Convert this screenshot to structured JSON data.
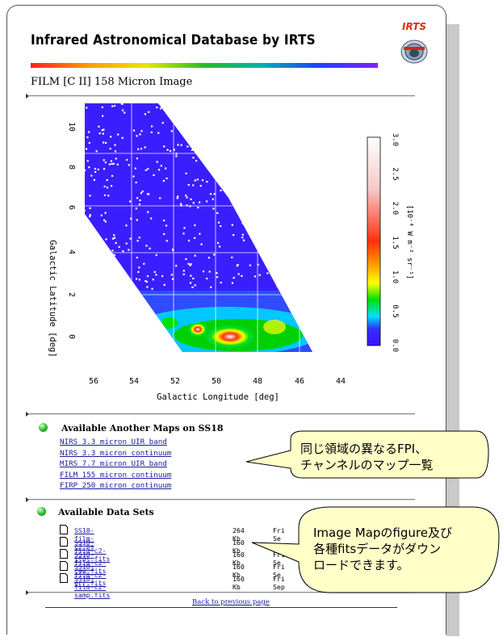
{
  "header": {
    "site_title": "Infrared Astronomical Database by IRTS",
    "logo_text": "IRTS"
  },
  "page_title": "FILM [C II] 158 Micron Image",
  "map": {
    "y_axis_label": "Galactic Latitude [deg]",
    "x_axis_label": "Galactic Longitude [deg]",
    "y_ticks": [
      "10",
      "8",
      "6",
      "4",
      "2",
      "0"
    ],
    "x_ticks": [
      "56",
      "54",
      "52",
      "50",
      "48",
      "46",
      "44"
    ],
    "colorbar_ticks": [
      "3.0",
      "2.5",
      "2.0",
      "1.5",
      "1.0",
      "0.5",
      "0.0"
    ],
    "colorbar_label": "[10⁻⁴ W m⁻² sr⁻¹]",
    "colorbar_colors": [
      "#ffffff",
      "#f4c8c8",
      "#ff3010",
      "#ff9000",
      "#ffff00",
      "#00e000",
      "#00e0ff",
      "#3030ff",
      "#4010ff"
    ]
  },
  "maps_section": {
    "title": "Available Another Maps on SS18",
    "links": [
      "NIRS 3.3 micron UIR band",
      "NIRS 3.3 micron continuum",
      "MIRS 7.7 micron UIR band",
      "FILM 155 micron continuum",
      "FIRP 250 micron continuum"
    ]
  },
  "data_section": {
    "title": "Available Data Sets",
    "files": [
      {
        "name": "SS18-film-c2.ps",
        "size": "264 Kb",
        "date": "Fri Se"
      },
      {
        "name": "SS18-film-c2-itpl.fits",
        "size": "160 Kb",
        "date": ""
      },
      {
        "name": "SS18-film-c2-raw.fits",
        "size": "160 Kb",
        "date": "Fri Se"
      },
      {
        "name": "SS18-film-c2-err.fits",
        "size": "160 Kb",
        "date": "Fri Se"
      },
      {
        "name": "SS18-film-c2-samp.fits",
        "size": "160 Kb",
        "date": "Fri Sep"
      }
    ]
  },
  "back_link": "Back to previous page",
  "callouts": {
    "maps_note_line1": "同じ領域の異なるFPI、",
    "maps_note_line2": "チャンネルのマップ一覧",
    "data_note_line1": "Image Mapのfigure及び",
    "data_note_line2": "各種fitsデータがダウン",
    "data_note_line3": "ロードできます。"
  }
}
